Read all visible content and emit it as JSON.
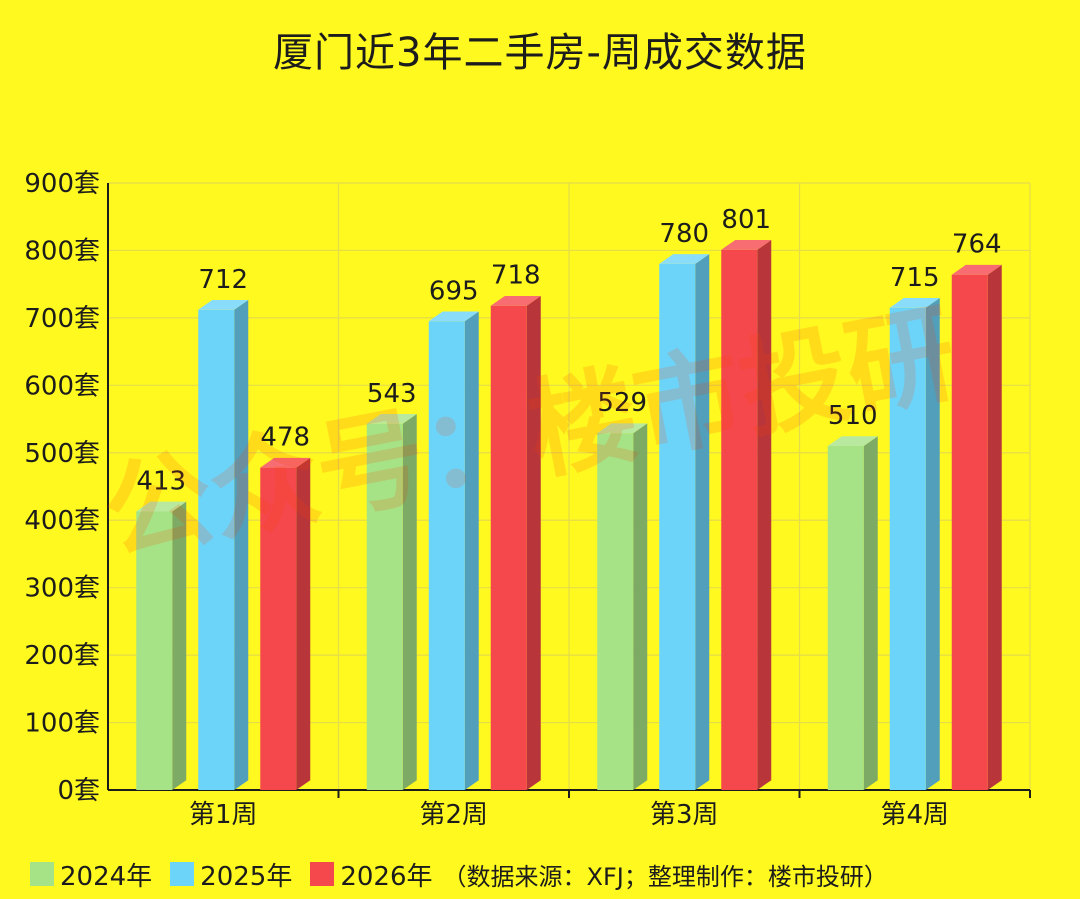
{
  "page": {
    "title": "厦门近3年二手房-周成交数据",
    "watermark": "公众号：楼市投研",
    "source_note": "（数据来源：XFJ；整理制作：楼市投研）"
  },
  "chart_data": {
    "type": "bar",
    "title": "厦门近3年二手房-周成交数据",
    "categories": [
      "第1周",
      "第2周",
      "第3周",
      "第4周"
    ],
    "series": [
      {
        "name": "2024年",
        "values": [
          413,
          543,
          529,
          510
        ],
        "color": "#A6E386"
      },
      {
        "name": "2025年",
        "values": [
          712,
          695,
          780,
          715
        ],
        "color": "#6DD4F9"
      },
      {
        "name": "2026年",
        "values": [
          478,
          718,
          801,
          764
        ],
        "color": "#F5484D"
      }
    ],
    "ylim": [
      0,
      900
    ],
    "yticks": [
      0,
      100,
      200,
      300,
      400,
      500,
      600,
      700,
      800,
      900
    ],
    "yunit": "套",
    "grid": true,
    "legend": "bottom-left",
    "data_labels": true,
    "style": "3d-bar"
  }
}
